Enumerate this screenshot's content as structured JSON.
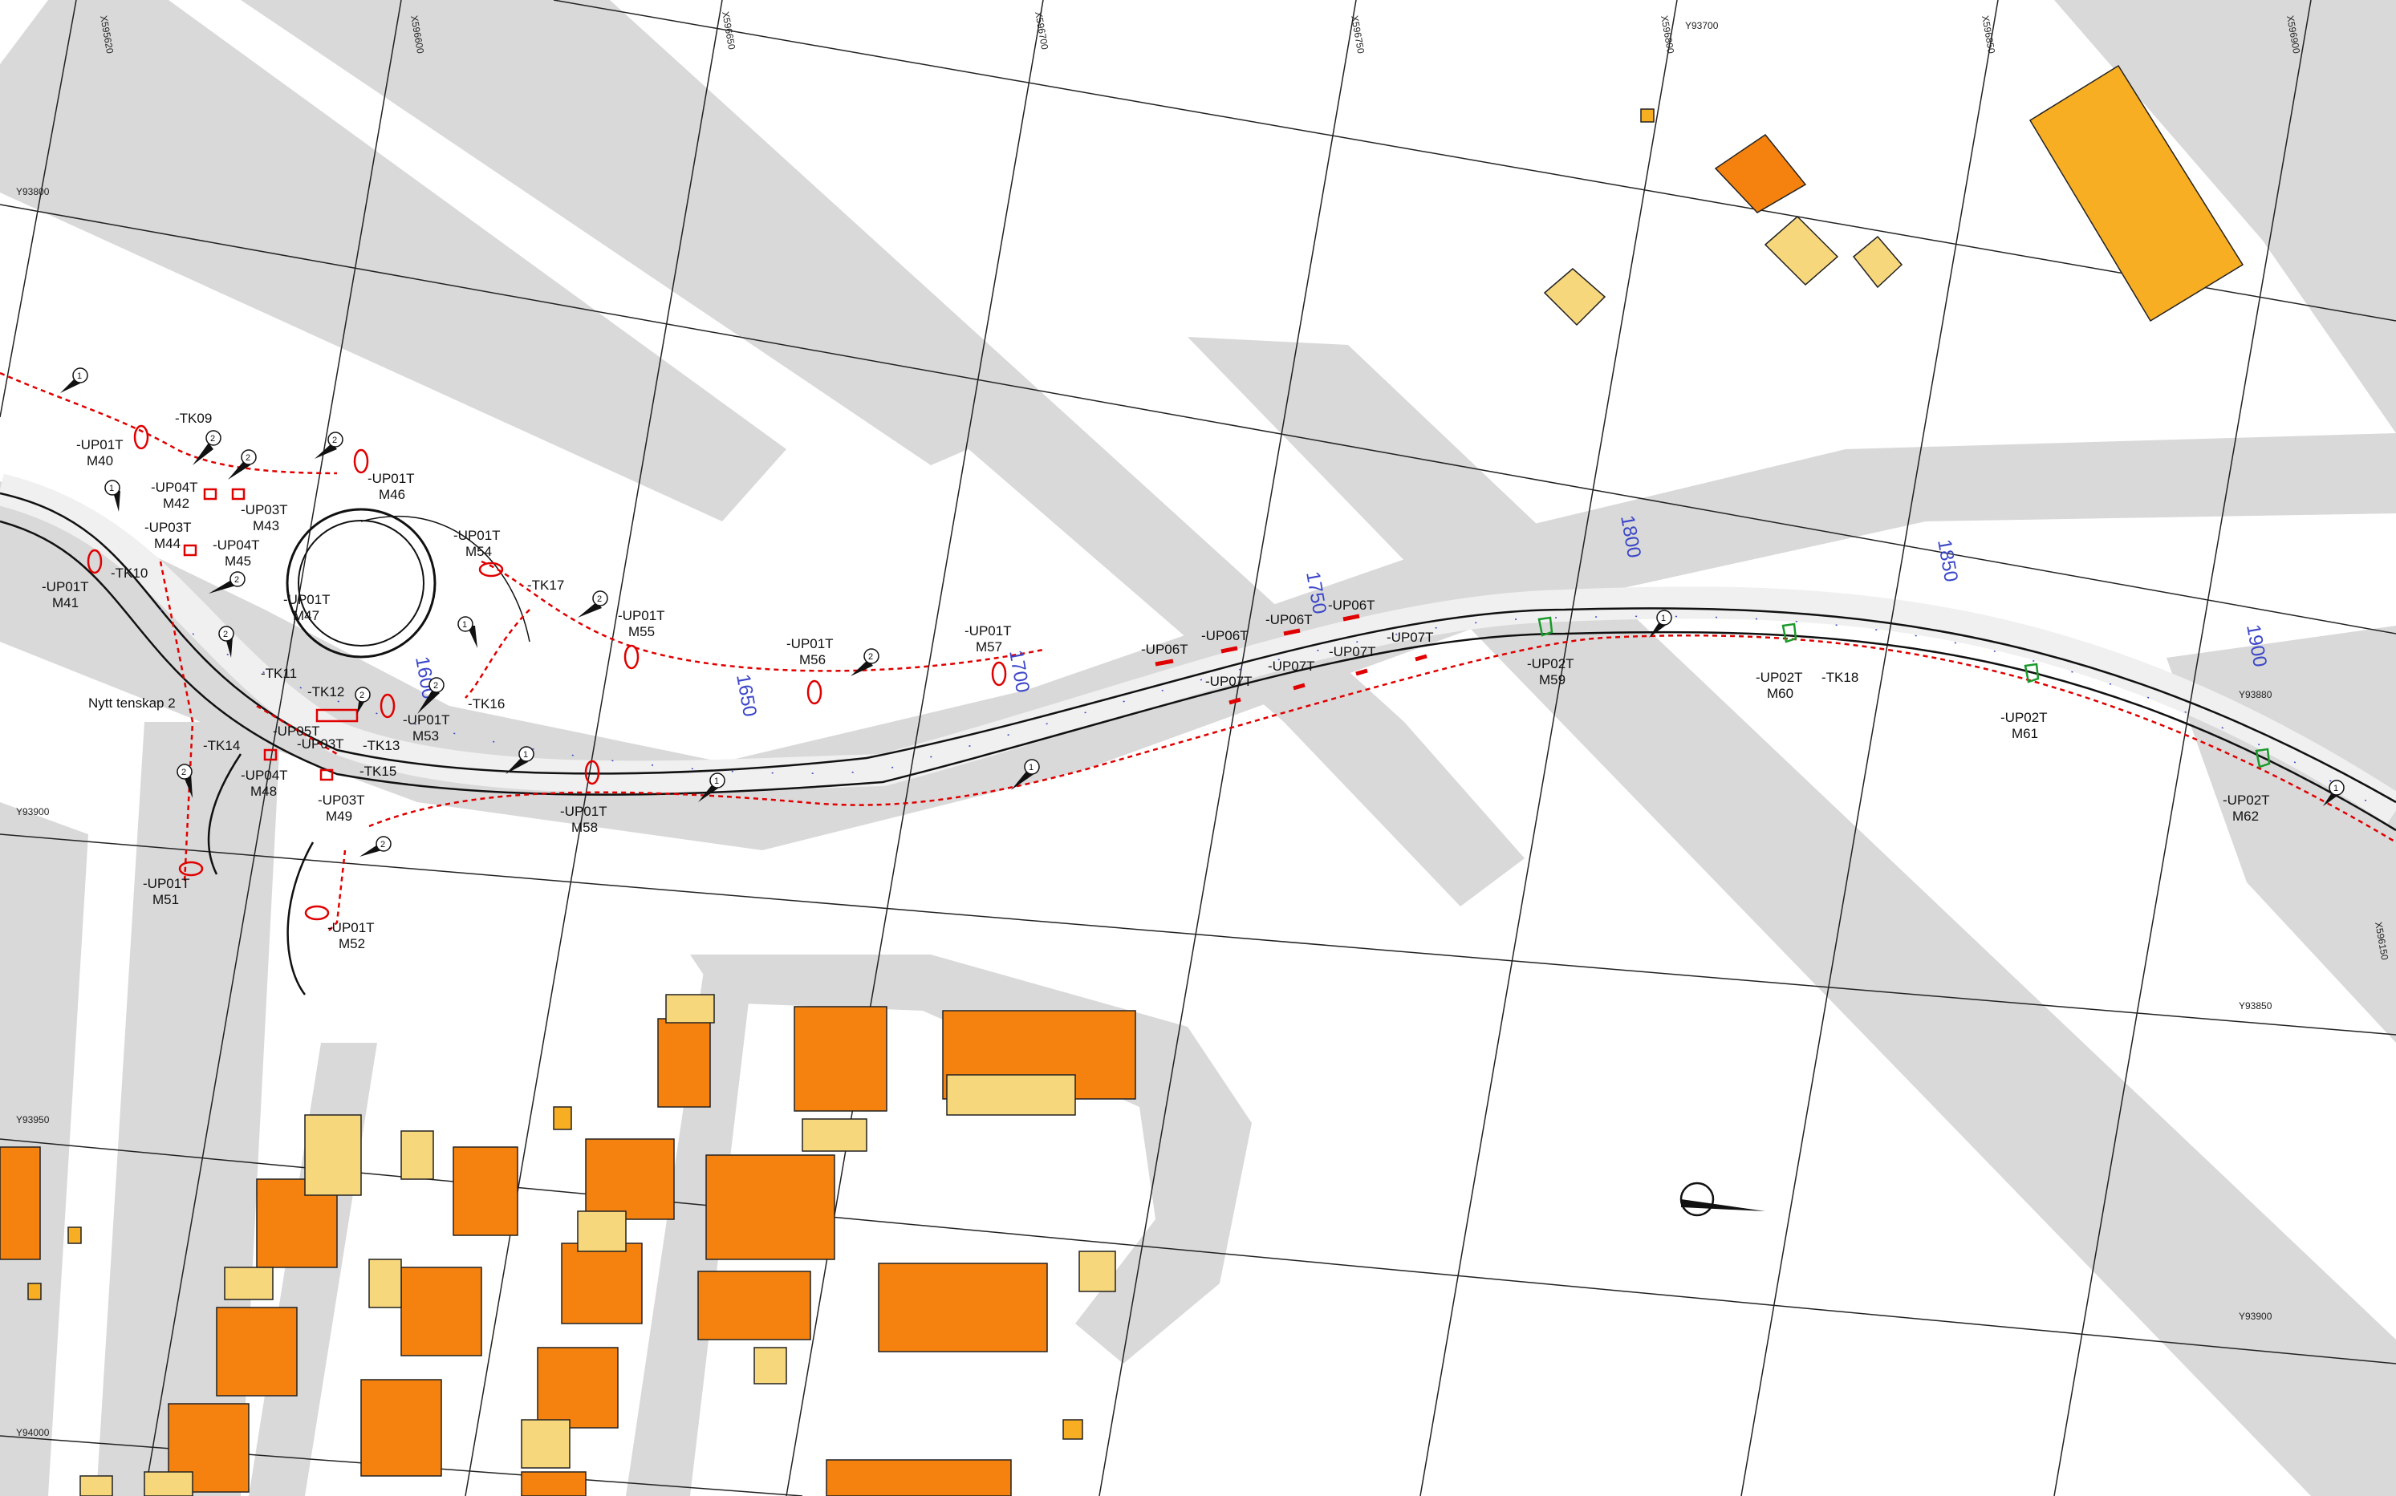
{
  "map": {
    "title": "",
    "colors": {
      "road_fill": "#d9d9d9",
      "building_orange": "#f5820f",
      "building_light": "#f7d77c",
      "building_amber": "#f8ae22",
      "cable_red": "#e00000",
      "chainage_blue": "#3a46c8",
      "marker_green": "#1a9a2a",
      "grid_line": "#222222"
    },
    "coord_labels": [
      "X595620",
      "X596600",
      "X596650",
      "X596700",
      "X596750",
      "X596800",
      "X596850",
      "X596900",
      "Y93700",
      "Y93800",
      "Y93880",
      "Y93900",
      "Y93950",
      "Y94000",
      "Y93850",
      "Y93900",
      "X596150"
    ],
    "chainage": [
      "1600",
      "1650",
      "1700",
      "1750",
      "1800",
      "1850",
      "1900"
    ],
    "junction_labels": [
      "-TK09",
      "-TK10",
      "-TK11",
      "-TK12",
      "-TK13",
      "-TK14",
      "-TK15",
      "-TK16",
      "-TK17",
      "-TK18"
    ],
    "cable_labels": [
      [
        "-UP01T",
        "M40"
      ],
      [
        "-UP04T",
        "M42"
      ],
      [
        "-UP03T",
        "M43"
      ],
      [
        "-UP03T",
        "M44"
      ],
      [
        "-UP04T",
        "M45"
      ],
      [
        "-UP01T",
        "M41"
      ],
      [
        "-UP01T",
        "M46"
      ],
      [
        "-UP01T",
        "M47"
      ],
      [
        "-UP01T",
        "M54"
      ],
      [
        "-UP01T",
        "M55"
      ],
      [
        "-UP01T",
        "M56"
      ],
      [
        "-UP01T",
        "M57"
      ],
      [
        "-UP05T",
        ""
      ],
      [
        "-UP03T",
        ""
      ],
      [
        "-UP01T",
        "M53"
      ],
      [
        "-UP04T",
        "M48"
      ],
      [
        "-UP03T",
        "M49"
      ],
      [
        "-UP01T",
        "M58"
      ],
      [
        "-UP01T",
        "M51"
      ],
      [
        "-UP01T",
        "M52"
      ],
      [
        "-UP02T",
        "M59"
      ],
      [
        "-UP02T",
        "M60"
      ],
      [
        "-UP02T",
        "M61"
      ],
      [
        "-UP02T",
        "M62"
      ]
    ],
    "upgrade_labels": [
      "-UP06T",
      "-UP06T",
      "-UP06T",
      "-UP06T",
      "-UP07T",
      "-UP07T",
      "-UP07T",
      "-UP07T"
    ],
    "annotation": "Nytt tenskap 2",
    "tag_numbers": [
      "1",
      "2"
    ]
  }
}
